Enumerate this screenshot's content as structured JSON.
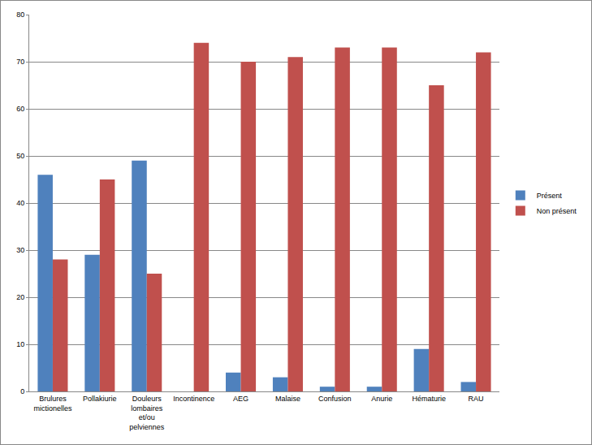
{
  "chart_data": {
    "type": "bar",
    "categories": [
      "Brulures mictionelles",
      "Pollakiurie",
      "Douleurs lombaires et/ou pelviennes",
      "Incontinence",
      "AEG",
      "Malaise",
      "Confusion",
      "Anurie",
      "Hématurie",
      "RAU"
    ],
    "series": [
      {
        "name": "Présent",
        "color": "#4f81bd",
        "values": [
          46,
          29,
          49,
          0,
          4,
          3,
          1,
          1,
          9,
          2
        ]
      },
      {
        "name": "Non présent",
        "color": "#c0504d",
        "values": [
          28,
          45,
          25,
          74,
          70,
          71,
          73,
          73,
          65,
          72
        ]
      }
    ],
    "ylim": [
      0,
      80
    ],
    "yticks": [
      0,
      10,
      20,
      30,
      40,
      50,
      60,
      70,
      80
    ],
    "grid": true,
    "legend": "right"
  }
}
